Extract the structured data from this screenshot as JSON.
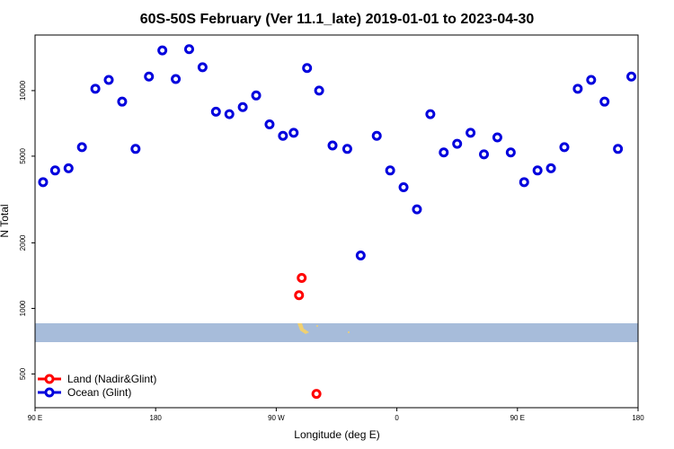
{
  "chart_data": {
    "type": "scatter",
    "title": "60S-50S February (Ver 11.1_late)   2019-01-01 to 2023-04-30",
    "xlabel": "Longitude (deg E)",
    "ylabel": "N Total",
    "x_ticks": [
      {
        "value": 90,
        "label": "90 E"
      },
      {
        "value": 180,
        "label": "180"
      },
      {
        "value": 270,
        "label": "90 W"
      },
      {
        "value": 360,
        "label": "0"
      },
      {
        "value": 450,
        "label": "90 E"
      },
      {
        "value": 540,
        "label": "180"
      }
    ],
    "y_ticks": [
      {
        "value": 500,
        "label": "500"
      },
      {
        "value": 1000,
        "label": "1000"
      },
      {
        "value": 2000,
        "label": "2000"
      },
      {
        "value": 5000,
        "label": "5000"
      },
      {
        "value": 10000,
        "label": "10000"
      }
    ],
    "y_scale": "log",
    "xlim": [
      90,
      540
    ],
    "ylim": [
      350,
      18000
    ],
    "legend_position": "bottom-left",
    "colors": {
      "land": "#ff0000",
      "ocean": "#0000dd",
      "band": "#a7bcda",
      "land_band": "#f0d070"
    },
    "series": [
      {
        "name": "Land (Nadir&Glint)",
        "color": "#ff0000",
        "x": [
          287,
          289,
          300
        ],
        "y": [
          1150,
          1380,
          405
        ]
      },
      {
        "name": "Ocean (Glint)",
        "color": "#0000dd",
        "x": [
          96,
          105,
          115,
          125,
          135,
          145,
          155,
          165,
          175,
          185,
          195,
          205,
          215,
          225,
          235,
          245,
          255,
          265,
          275,
          283,
          293,
          302,
          312,
          323,
          333,
          345,
          355,
          365,
          375,
          385,
          395,
          405,
          415,
          425,
          435,
          445,
          455,
          465,
          475,
          485,
          495,
          505,
          515,
          525,
          535
        ],
        "y": [
          3800,
          4300,
          4400,
          5500,
          10200,
          11200,
          8900,
          5400,
          11600,
          15300,
          11300,
          15500,
          12800,
          8000,
          7800,
          8400,
          9500,
          7000,
          6200,
          6400,
          12700,
          10000,
          5600,
          5400,
          1750,
          6200,
          4300,
          3600,
          2850,
          7800,
          5200,
          5700,
          6400,
          5100,
          6100,
          5200,
          3800,
          4300,
          4400,
          5500,
          10200,
          11200,
          8900,
          5400,
          11600
        ]
      }
    ]
  }
}
